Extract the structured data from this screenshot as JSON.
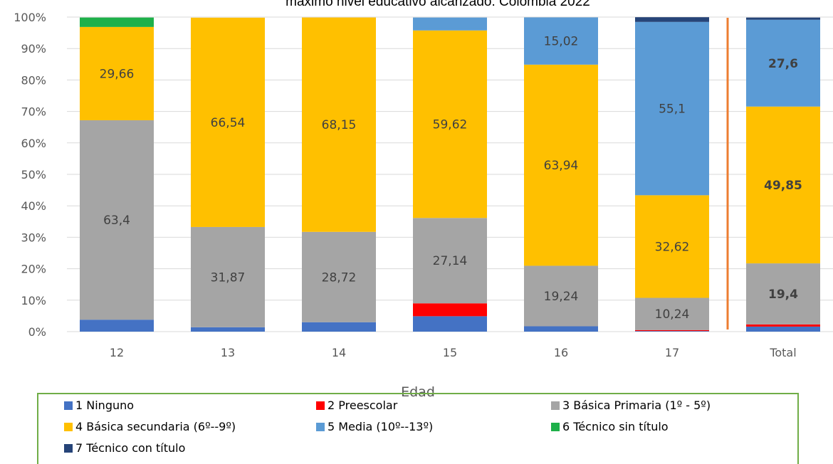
{
  "chart_data": {
    "type": "bar",
    "stacked": true,
    "percent": true,
    "title": "máximo nivel educativo alcanzado. Colombia 2022",
    "xlabel": "Edad",
    "ylabel": "",
    "ylim": [
      0,
      100
    ],
    "yticks": [
      "0%",
      "10%",
      "20%",
      "30%",
      "40%",
      "50%",
      "60%",
      "70%",
      "80%",
      "90%",
      "100%"
    ],
    "categories": [
      "12",
      "13",
      "14",
      "15",
      "16",
      "17",
      "Total"
    ],
    "series": [
      {
        "name": "1 Ninguno",
        "color": "#4472C4",
        "values": [
          3.8,
          1.4,
          3.0,
          4.9,
          1.7,
          0.2,
          1.6
        ]
      },
      {
        "name": "2 Preescolar",
        "color": "#FF0000",
        "values": [
          0.0,
          0.0,
          0.0,
          4.1,
          0.0,
          0.3,
          0.7
        ]
      },
      {
        "name": "3 Básica Primaria (1º - 5º)",
        "color": "#A5A5A5",
        "values": [
          63.4,
          31.87,
          28.72,
          27.14,
          19.24,
          10.24,
          19.4
        ]
      },
      {
        "name": "4 Básica secundaria (6º--9º)",
        "color": "#FFC000",
        "values": [
          29.66,
          66.54,
          68.15,
          59.62,
          63.94,
          32.62,
          49.85
        ]
      },
      {
        "name": "5 Media (10º--13º)",
        "color": "#5B9BD5",
        "values": [
          0.0,
          0.0,
          0.0,
          4.1,
          15.02,
          55.1,
          27.6
        ]
      },
      {
        "name": "6 Técnico sin título",
        "color": "#1EB04A",
        "values": [
          3.0,
          0.0,
          0.0,
          0.0,
          0.0,
          0.0,
          0.0
        ]
      },
      {
        "name": "7 Técnico con título",
        "color": "#264478",
        "values": [
          0.0,
          0.0,
          0.0,
          0.0,
          0.0,
          1.5,
          0.7
        ]
      }
    ],
    "data_labels": [
      {
        "category": "12",
        "series": "3 Básica Primaria (1º - 5º)",
        "text": "63,4"
      },
      {
        "category": "12",
        "series": "4 Básica secundaria (6º--9º)",
        "text": "29,66"
      },
      {
        "category": "13",
        "series": "3 Básica Primaria (1º - 5º)",
        "text": "31,87"
      },
      {
        "category": "13",
        "series": "4 Básica secundaria (6º--9º)",
        "text": "66,54"
      },
      {
        "category": "14",
        "series": "3 Básica Primaria (1º - 5º)",
        "text": "28,72"
      },
      {
        "category": "14",
        "series": "4 Básica secundaria (6º--9º)",
        "text": "68,15"
      },
      {
        "category": "15",
        "series": "3 Básica Primaria (1º - 5º)",
        "text": "27,14"
      },
      {
        "category": "15",
        "series": "4 Básica secundaria (6º--9º)",
        "text": "59,62"
      },
      {
        "category": "16",
        "series": "3 Básica Primaria (1º - 5º)",
        "text": "19,24"
      },
      {
        "category": "16",
        "series": "4 Básica secundaria (6º--9º)",
        "text": "63,94"
      },
      {
        "category": "16",
        "series": "5 Media (10º--13º)",
        "text": "15,02"
      },
      {
        "category": "17",
        "series": "3 Básica Primaria (1º - 5º)",
        "text": "10,24"
      },
      {
        "category": "17",
        "series": "4 Básica secundaria (6º--9º)",
        "text": "32,62"
      },
      {
        "category": "17",
        "series": "5 Media (10º--13º)",
        "text": "55,1"
      },
      {
        "category": "Total",
        "series": "3 Básica Primaria (1º - 5º)",
        "text": "19,4",
        "bold": true
      },
      {
        "category": "Total",
        "series": "4 Básica secundaria (6º--9º)",
        "text": "49,85",
        "bold": true
      },
      {
        "category": "Total",
        "series": "5 Media (10º--13º)",
        "text": "27,6",
        "bold": true
      }
    ],
    "separator": {
      "between": [
        "17",
        "Total"
      ],
      "color": "#ED7D31"
    },
    "grid": true,
    "legend_position": "bottom"
  }
}
